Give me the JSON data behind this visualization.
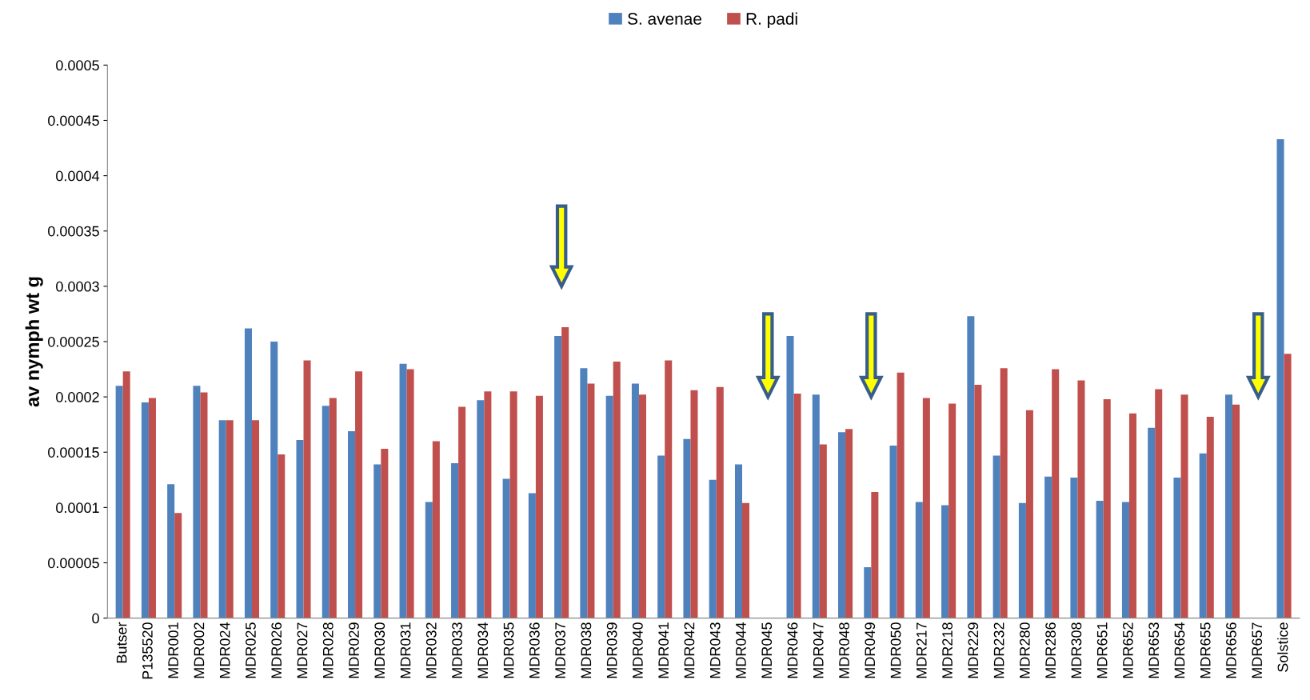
{
  "chart_data": {
    "type": "bar",
    "ylabel": "av nymph wt g",
    "categories": [
      "Butser",
      "P135520",
      "MDR001",
      "MDR002",
      "MDR024",
      "MDR025",
      "MDR026",
      "MDR027",
      "MDR028",
      "MDR029",
      "MDR030",
      "MDR031",
      "MDR032",
      "MDR033",
      "MDR034",
      "MDR035",
      "MDR036",
      "MDR037",
      "MDR038",
      "MDR039",
      "MDR040",
      "MDR041",
      "MDR042",
      "MDR043",
      "MDR044",
      "MDR045",
      "MDR046",
      "MDR047",
      "MDR048",
      "MDR049",
      "MDR050",
      "MDR217",
      "MDR218",
      "MDR229",
      "MDR232",
      "MDR280",
      "MDR286",
      "MDR308",
      "MDR651",
      "MDR652",
      "MDR653",
      "MDR654",
      "MDR655",
      "MDR656",
      "MDR657",
      "Solstice"
    ],
    "series": [
      {
        "name": "S. avenae",
        "color": "#4f81bd",
        "values": [
          0.00021,
          0.000195,
          0.000121,
          0.00021,
          0.000179,
          0.000262,
          0.00025,
          0.000161,
          0.000192,
          0.000169,
          0.000139,
          0.00023,
          0.000105,
          0.00014,
          0.000197,
          0.000126,
          0.000113,
          0.000255,
          0.000226,
          0.000201,
          0.000212,
          0.000147,
          0.000162,
          0.000125,
          0.000139,
          null,
          0.000255,
          0.000202,
          0.000168,
          4.6e-05,
          0.000156,
          0.000105,
          0.000102,
          0.000273,
          0.000147,
          0.000104,
          0.000128,
          0.000127,
          0.000106,
          0.000105,
          0.000172,
          0.000127,
          0.000149,
          0.000202,
          null,
          0.000433
        ]
      },
      {
        "name": "R. padi",
        "color": "#c0504d",
        "values": [
          0.000223,
          0.000199,
          9.5e-05,
          0.000204,
          0.000179,
          0.000179,
          0.000148,
          0.000233,
          0.000199,
          0.000223,
          0.000153,
          0.000225,
          0.00016,
          0.000191,
          0.000205,
          0.000205,
          0.000201,
          0.000263,
          0.000212,
          0.000232,
          0.000202,
          0.000233,
          0.000206,
          0.000209,
          0.000104,
          null,
          0.000203,
          0.000157,
          0.000171,
          0.000114,
          0.000222,
          0.000199,
          0.000194,
          0.000211,
          0.000226,
          0.000188,
          0.000225,
          0.000215,
          0.000198,
          0.000185,
          0.000207,
          0.000202,
          0.000182,
          0.000193,
          null,
          0.000239
        ]
      }
    ],
    "ylim": [
      0,
      0.0005
    ],
    "yticks": [
      0,
      {
        "value": 5e-05,
        "label": "0.00005"
      },
      0.0001,
      0.00015,
      0.0002,
      0.00025,
      0.0003,
      0.00035,
      0.0004,
      0.00045,
      0.0005
    ],
    "grid": false,
    "legend": "top"
  }
}
